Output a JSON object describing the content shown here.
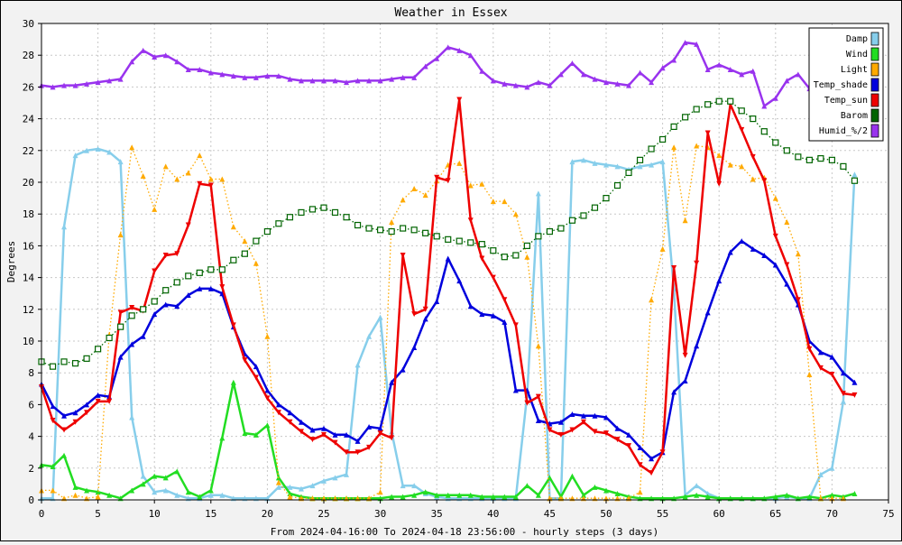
{
  "chart_data": {
    "type": "line",
    "title": "Weather in Essex",
    "ylabel": "Degrees",
    "xlabel": "From 2024-04-16:00 To 2024-04-18 23:56:00 - hourly steps (3 days)",
    "xlim": [
      0,
      75
    ],
    "ylim": [
      0,
      30
    ],
    "x_ticks": [
      0,
      5,
      10,
      15,
      20,
      25,
      30,
      35,
      40,
      45,
      50,
      55,
      60,
      65,
      70,
      75
    ],
    "y_ticks": [
      0,
      2,
      4,
      6,
      8,
      10,
      12,
      14,
      16,
      18,
      20,
      22,
      24,
      26,
      28,
      30
    ],
    "grid": true,
    "legend_position": "top-right",
    "series": [
      {
        "name": "Damp",
        "color": "#87ceeb",
        "style": "solid",
        "marker": "triangle-up",
        "values": [
          0.1,
          0.1,
          17.2,
          21.7,
          22.0,
          22.1,
          21.9,
          21.3,
          5.2,
          1.5,
          0.5,
          0.6,
          0.3,
          0.1,
          0.1,
          0.3,
          0.3,
          0.1,
          0.1,
          0.1,
          0.1,
          0.8,
          0.8,
          0.7,
          0.9,
          1.2,
          1.4,
          1.6,
          8.5,
          10.3,
          11.5,
          4.3,
          0.9,
          0.9,
          0.4,
          0.2,
          0.1,
          0.1,
          0.1,
          0.1,
          0.1,
          0.1,
          0.1,
          6.6,
          19.3,
          0.1,
          0.1,
          21.3,
          21.4,
          21.2,
          21.1,
          21.0,
          20.8,
          21.0,
          21.1,
          21.3,
          13.3,
          0.3,
          0.9,
          0.4,
          0.1,
          0.1,
          0.1,
          0.1,
          0.1,
          0.1,
          0.2,
          0.1,
          0.1,
          1.6,
          2.0,
          6.2,
          20.5
        ]
      },
      {
        "name": "Wind",
        "color": "#22dd22",
        "style": "solid",
        "marker": "triangle-up",
        "values": [
          2.2,
          2.1,
          2.8,
          0.8,
          0.6,
          0.5,
          0.3,
          0.1,
          0.6,
          1.0,
          1.5,
          1.4,
          1.8,
          0.5,
          0.2,
          0.6,
          3.9,
          7.4,
          4.2,
          4.1,
          4.7,
          1.4,
          0.4,
          0.2,
          0.1,
          0.1,
          0.1,
          0.1,
          0.1,
          0.1,
          0.1,
          0.2,
          0.2,
          0.3,
          0.5,
          0.3,
          0.3,
          0.3,
          0.3,
          0.2,
          0.2,
          0.2,
          0.2,
          0.9,
          0.3,
          1.4,
          0.2,
          1.5,
          0.3,
          0.8,
          0.6,
          0.4,
          0.2,
          0.1,
          0.1,
          0.1,
          0.1,
          0.2,
          0.3,
          0.2,
          0.1,
          0.1,
          0.1,
          0.1,
          0.1,
          0.2,
          0.3,
          0.1,
          0.2,
          0.1,
          0.3,
          0.2,
          0.4
        ]
      },
      {
        "name": "Light",
        "color": "#ffaa00",
        "style": "dotted",
        "marker": "triangle-up",
        "values": [
          0.6,
          0.6,
          0.1,
          0.3,
          0.1,
          0.2,
          10.4,
          16.7,
          22.2,
          20.4,
          18.3,
          21.0,
          20.2,
          20.6,
          21.7,
          20.2,
          20.2,
          17.2,
          16.3,
          14.9,
          10.3,
          1.1,
          0.2,
          0.1,
          0.1,
          0.1,
          0.1,
          0.1,
          0.1,
          0.1,
          0.5,
          17.5,
          18.9,
          19.6,
          19.2,
          20.1,
          21.1,
          21.2,
          19.8,
          19.9,
          18.8,
          18.8,
          18.0,
          15.3,
          9.7,
          0.1,
          0.1,
          0.1,
          0.1,
          0.1,
          0.1,
          0.1,
          0.1,
          0.5,
          12.6,
          15.8,
          22.2,
          17.6,
          22.3,
          22.2,
          21.7,
          21.1,
          21.0,
          20.2,
          20.3,
          19.0,
          17.5,
          15.5,
          7.9,
          0.1,
          0.1,
          0.1
        ]
      },
      {
        "name": "Temp_shade",
        "color": "#0000dd",
        "style": "solid",
        "marker": "triangle-up",
        "values": [
          7.3,
          5.9,
          5.3,
          5.5,
          6.0,
          6.6,
          6.5,
          9.0,
          9.8,
          10.3,
          11.7,
          12.3,
          12.2,
          12.9,
          13.3,
          13.3,
          13.0,
          10.9,
          9.2,
          8.4,
          6.9,
          6.0,
          5.5,
          4.9,
          4.4,
          4.5,
          4.1,
          4.1,
          3.7,
          4.6,
          4.5,
          7.4,
          8.2,
          9.6,
          11.4,
          12.5,
          15.2,
          13.8,
          12.2,
          11.7,
          11.6,
          11.2,
          6.9,
          6.9,
          5.0,
          4.8,
          4.9,
          5.4,
          5.3,
          5.3,
          5.2,
          4.5,
          4.1,
          3.3,
          2.6,
          3.0,
          6.8,
          7.5,
          9.7,
          11.8,
          13.8,
          15.6,
          16.3,
          15.8,
          15.4,
          14.8,
          13.6,
          12.3,
          10.0,
          9.3,
          9.0,
          8.0,
          7.4
        ]
      },
      {
        "name": "Temp_sun",
        "color": "#ee0000",
        "style": "solid",
        "marker": "triangle-down",
        "values": [
          7.1,
          5.0,
          4.4,
          4.9,
          5.5,
          6.2,
          6.2,
          11.8,
          12.1,
          11.9,
          14.4,
          15.4,
          15.5,
          17.3,
          19.9,
          19.8,
          13.4,
          11.0,
          8.8,
          7.7,
          6.4,
          5.5,
          4.9,
          4.3,
          3.8,
          4.1,
          3.6,
          3.0,
          3.0,
          3.3,
          4.2,
          3.9,
          15.4,
          11.7,
          12.0,
          20.3,
          20.1,
          25.2,
          17.6,
          15.2,
          14.0,
          12.6,
          11.0,
          6.1,
          6.5,
          4.4,
          4.1,
          4.4,
          4.9,
          4.3,
          4.2,
          3.8,
          3.4,
          2.2,
          1.7,
          3.0,
          14.6,
          9.1,
          14.9,
          23.1,
          19.9,
          24.9,
          23.3,
          21.6,
          20.1,
          16.6,
          14.8,
          12.6,
          9.5,
          8.3,
          7.9,
          6.7,
          6.6
        ]
      },
      {
        "name": "Barom",
        "color": "#006400",
        "style": "dotted",
        "marker": "square",
        "values": [
          8.7,
          8.4,
          8.7,
          8.6,
          8.9,
          9.5,
          10.2,
          10.9,
          11.6,
          12.0,
          12.5,
          13.2,
          13.7,
          14.1,
          14.3,
          14.5,
          14.5,
          15.1,
          15.5,
          16.3,
          16.9,
          17.4,
          17.8,
          18.1,
          18.3,
          18.4,
          18.1,
          17.8,
          17.3,
          17.1,
          17.0,
          16.9,
          17.1,
          17.0,
          16.8,
          16.6,
          16.4,
          16.3,
          16.2,
          16.1,
          15.7,
          15.3,
          15.4,
          16.0,
          16.6,
          16.9,
          17.1,
          17.6,
          17.9,
          18.4,
          19.0,
          19.8,
          20.6,
          21.4,
          22.1,
          22.7,
          23.5,
          24.1,
          24.6,
          24.9,
          25.1,
          25.1,
          24.5,
          24.0,
          23.2,
          22.5,
          22.0,
          21.6,
          21.4,
          21.5,
          21.4,
          21.0,
          20.1
        ]
      },
      {
        "name": "Humid_%/2",
        "color": "#9933ee",
        "style": "solid",
        "marker": "triangle-up",
        "values": [
          26.1,
          26.0,
          26.1,
          26.1,
          26.2,
          26.3,
          26.4,
          26.5,
          27.6,
          28.3,
          27.9,
          28.0,
          27.6,
          27.1,
          27.1,
          26.9,
          26.8,
          26.7,
          26.6,
          26.6,
          26.7,
          26.7,
          26.5,
          26.4,
          26.4,
          26.4,
          26.4,
          26.3,
          26.4,
          26.4,
          26.4,
          26.5,
          26.6,
          26.6,
          27.3,
          27.8,
          28.5,
          28.3,
          28.0,
          27.0,
          26.4,
          26.2,
          26.1,
          26.0,
          26.3,
          26.1,
          26.8,
          27.5,
          26.8,
          26.5,
          26.3,
          26.2,
          26.1,
          26.9,
          26.3,
          27.2,
          27.7,
          28.8,
          28.7,
          27.1,
          27.4,
          27.1,
          26.8,
          27.0,
          24.8,
          25.3,
          26.4,
          26.8,
          25.9
        ]
      }
    ]
  }
}
